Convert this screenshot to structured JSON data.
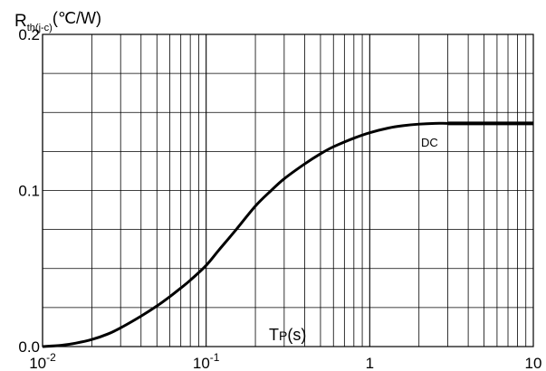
{
  "chart_data": {
    "type": "line",
    "title": "",
    "xscale": "log",
    "xlim": [
      0.01,
      10
    ],
    "ylim": [
      0,
      0.2
    ],
    "grid": true,
    "ylabel": {
      "main": "R",
      "sub": "th(j-c)",
      "unit": "(℃/W)"
    },
    "xlabel": {
      "main": "T",
      "sub": "P",
      "unit": "(s)"
    },
    "y_ticks": [
      "0.0",
      "0.1",
      "0.2"
    ],
    "x_ticks": [
      {
        "base": "10",
        "exp": "-2"
      },
      {
        "base": "10",
        "exp": "-1"
      },
      {
        "base": "1",
        "exp": ""
      },
      {
        "base": "10",
        "exp": ""
      }
    ],
    "annotations": [
      "DC"
    ],
    "series": [
      {
        "x": [
          0.01,
          0.013,
          0.016,
          0.02,
          0.025,
          0.03,
          0.04,
          0.05,
          0.06,
          0.07,
          0.08,
          0.1,
          0.12,
          0.15,
          0.2,
          0.25,
          0.3,
          0.4,
          0.5,
          0.6,
          0.8,
          1,
          1.3,
          1.6,
          2,
          2.5,
          3,
          4,
          5,
          7,
          10
        ],
        "y": [
          0,
          0.0008,
          0.0022,
          0.0045,
          0.008,
          0.012,
          0.0195,
          0.026,
          0.032,
          0.0375,
          0.0425,
          0.052,
          0.062,
          0.074,
          0.09,
          0.1,
          0.1075,
          0.117,
          0.1235,
          0.128,
          0.1335,
          0.137,
          0.14,
          0.1415,
          0.1425,
          0.143,
          0.143,
          0.143,
          0.143,
          0.143,
          0.143
        ]
      }
    ]
  }
}
